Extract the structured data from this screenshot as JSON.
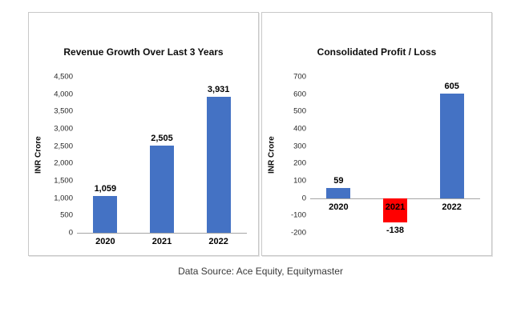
{
  "caption": "Data Source: Ace Equity, Equitymaster",
  "colors": {
    "bar_blue": "#4472C4",
    "bar_red": "#FF0000",
    "axis_line": "#A6A6A6",
    "panel_border": "#C8C8C8"
  },
  "chart_data": [
    {
      "type": "bar",
      "title": "Revenue Growth Over Last 3 Years",
      "xlabel": "",
      "ylabel": "INR Crore",
      "categories": [
        "2020",
        "2021",
        "2022"
      ],
      "values": [
        1059,
        2505,
        3931
      ],
      "value_labels": [
        "1,059",
        "2,505",
        "3,931"
      ],
      "ylim": [
        0,
        4500
      ],
      "ytick_step": 500,
      "ytick_labels": [
        "0",
        "500",
        "1,000",
        "1,500",
        "2,000",
        "2,500",
        "3,000",
        "3,500",
        "4,000",
        "4,500"
      ],
      "bar_colors": [
        "#4472C4",
        "#4472C4",
        "#4472C4"
      ],
      "grid": false,
      "legend": "none"
    },
    {
      "type": "bar",
      "title": "Consolidated Profit / Loss",
      "xlabel": "",
      "ylabel": "INR Crore",
      "categories": [
        "2020",
        "2021",
        "2022"
      ],
      "values": [
        59,
        -138,
        605
      ],
      "value_labels": [
        "59",
        "-138",
        "605"
      ],
      "ylim": [
        -200,
        700
      ],
      "ytick_step": 100,
      "ytick_labels": [
        "-200",
        "-100",
        "0",
        "100",
        "200",
        "300",
        "400",
        "500",
        "600",
        "700"
      ],
      "bar_colors": [
        "#4472C4",
        "#FF0000",
        "#4472C4"
      ],
      "grid": false,
      "legend": "none"
    }
  ]
}
